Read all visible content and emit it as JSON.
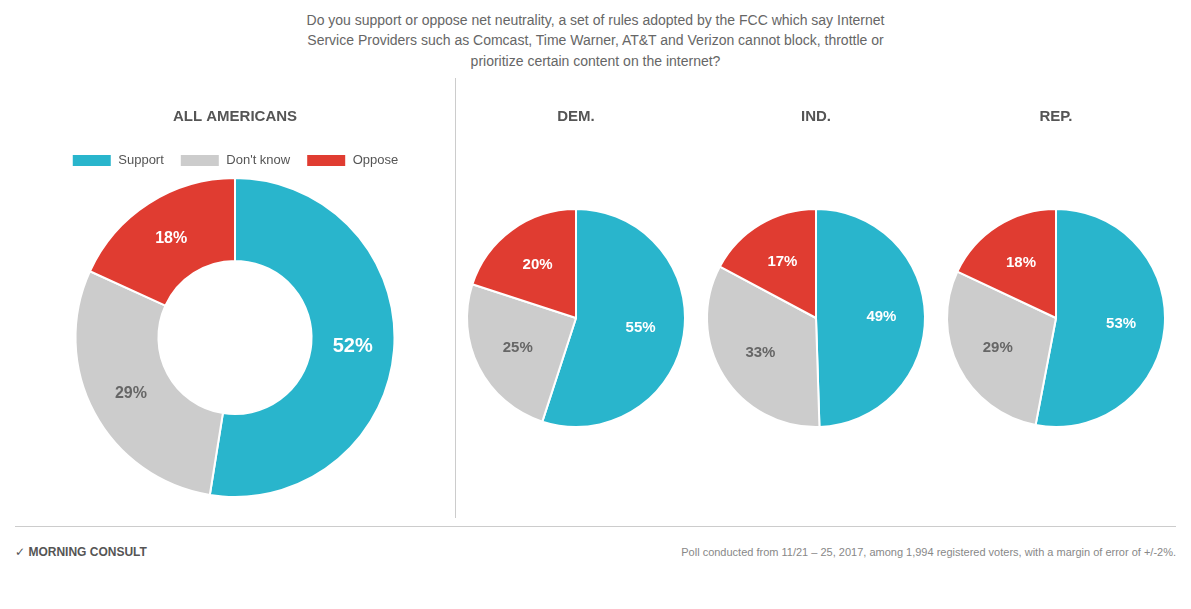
{
  "chart_data": [
    {
      "type": "doughnut",
      "title": "ALL AMERICANS",
      "categories": [
        "Support",
        "Don't know",
        "Oppose"
      ],
      "values": [
        52,
        29,
        18
      ],
      "value_labels": [
        "52%",
        "29%",
        "18%"
      ],
      "colors": [
        "#29b5cc",
        "#cccccc",
        "#e03c31"
      ],
      "data_labels": true,
      "legend": "top",
      "annotations": [
        "Do you support or oppose net neutrality, a set of rules adopted by the FCC which say Internet\nService Providers such as Comcast, Time Warner, AT&T and Verizon cannot block, throttle or\nprioritize certain content on the internet?",
        "✓ MORNING CONSULT",
        "Poll conducted from 11/21 – 25, 2017, among 1,994 registered voters, with a margin of error of +/-2%."
      ]
    },
    {
      "type": "pie",
      "title": "DEM.",
      "categories": [
        "Support",
        "Don't know",
        "Oppose"
      ],
      "values": [
        55,
        25,
        20
      ],
      "value_labels": [
        "55%",
        "25%",
        "20%"
      ],
      "colors": [
        "#29b5cc",
        "#cccccc",
        "#e03c31"
      ],
      "data_labels": true
    },
    {
      "type": "pie",
      "title": "IND.",
      "categories": [
        "Support",
        "Don't know",
        "Oppose"
      ],
      "values": [
        49,
        33,
        17
      ],
      "value_labels": [
        "49%",
        "33%",
        "17%"
      ],
      "colors": [
        "#29b5cc",
        "#cccccc",
        "#e03c31"
      ],
      "data_labels": true
    },
    {
      "type": "pie",
      "title": "REP.",
      "categories": [
        "Support",
        "Don't know",
        "Oppose"
      ],
      "values": [
        53,
        29,
        18
      ],
      "value_labels": [
        "53%",
        "29%",
        "18%"
      ],
      "colors": [
        "#29b5cc",
        "#cccccc",
        "#e03c31"
      ],
      "data_labels": true
    }
  ]
}
